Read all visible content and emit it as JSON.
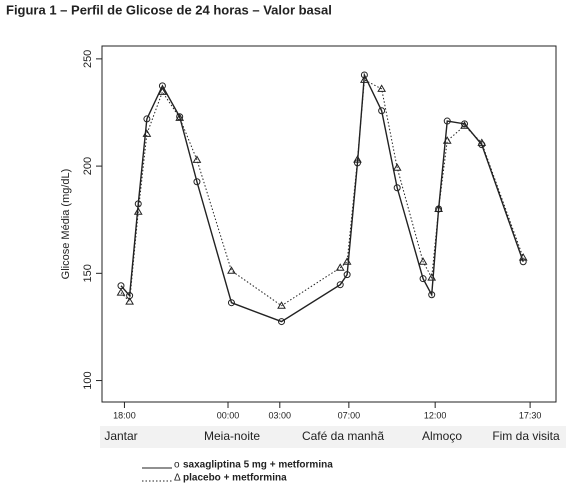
{
  "chart_data": {
    "type": "line",
    "title": "Figura 1 – Perfil de Glicose de 24 horas – Valor basal",
    "y_label": "Glicose Média (mg/dL)",
    "x": [
      -0.2,
      0.3,
      0.8,
      1.3,
      2.2,
      3.2,
      4.2,
      6.2,
      9.1,
      12.5,
      12.9,
      13.5,
      13.9,
      14.9,
      15.8,
      17.3,
      17.8,
      18.2,
      18.7,
      19.7,
      20.7,
      23.1
    ],
    "series": [
      {
        "name": "saxagliptina 5 mg + metformina",
        "marker_label": "o",
        "color": "#222222",
        "dash": "solid",
        "marker": "circle",
        "values": [
          144.2,
          139.6,
          182.4,
          222,
          237.4,
          223,
          192.7,
          136.3,
          127.5,
          144.7,
          149.4,
          201.5,
          242.5,
          225.8,
          189.9,
          147.5,
          140,
          180,
          221,
          219.7,
          210,
          155.4
        ]
      },
      {
        "name": "placebo + metformina",
        "marker_label": "Δ",
        "color": "#222222",
        "dash": "dotted",
        "marker": "triangle",
        "values": [
          141,
          136.8,
          178.7,
          215,
          234.6,
          222.5,
          202.9,
          151.2,
          134.9,
          152.6,
          155.4,
          203,
          240.2,
          236,
          199.2,
          155.4,
          148,
          180,
          211.8,
          218.8,
          210.8,
          157.3
        ]
      }
    ],
    "xlim": [
      -1.3,
      25
    ],
    "xticks": [
      {
        "value": 0,
        "label": "18:00"
      },
      {
        "value": 6,
        "label": "00:00"
      },
      {
        "value": 9,
        "label": "03:00"
      },
      {
        "value": 13,
        "label": "07:00"
      },
      {
        "value": 18,
        "label": "12:00"
      },
      {
        "value": 23.5,
        "label": "17:30"
      }
    ],
    "ylim": [
      90,
      256
    ],
    "yticks": [
      100,
      150,
      200,
      250
    ],
    "period_labels": [
      "Jantar",
      "Meia-noite",
      "Café da manhã",
      "Almoço",
      "Fim da visita"
    ]
  }
}
